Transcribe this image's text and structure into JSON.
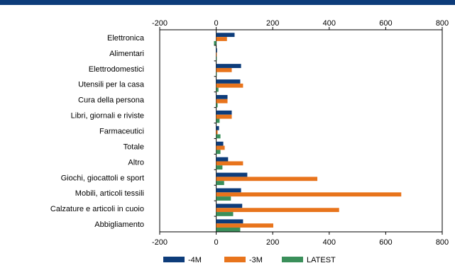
{
  "chart_data": {
    "type": "bar",
    "orientation": "horizontal",
    "categories": [
      "Elettronica",
      "Alimentari",
      "Elettrodomestici",
      "Utensili per la casa",
      "Cura della persona",
      "Libri, giornali e riviste",
      "Farmaceutici",
      "Totale",
      "Altro",
      "Giochi, giocattoli e sport",
      "Mobili, articoli tessili",
      "Calzature e articoli in cuoio",
      "Abbigliamento"
    ],
    "series": [
      {
        "name": "-4M",
        "color": "#0d3c7a",
        "values": [
          65,
          3,
          88,
          85,
          40,
          55,
          10,
          25,
          42,
          110,
          88,
          92,
          95
        ]
      },
      {
        "name": "-3M",
        "color": "#e8741c",
        "values": [
          38,
          0,
          55,
          95,
          40,
          55,
          5,
          30,
          95,
          358,
          655,
          435,
          202
        ]
      },
      {
        "name": "LATEST",
        "color": "#3a8f5a",
        "values": [
          -8,
          0,
          0,
          8,
          5,
          12,
          15,
          15,
          22,
          28,
          52,
          60,
          85
        ]
      }
    ],
    "xlim": [
      -200,
      800
    ],
    "xticks": [
      -200,
      0,
      200,
      400,
      600,
      800
    ],
    "xtick_labels": [
      "-200",
      "0",
      "200",
      "400",
      "600",
      "800"
    ],
    "legend_position": "bottom",
    "title": "",
    "xlabel": "",
    "ylabel": ""
  }
}
